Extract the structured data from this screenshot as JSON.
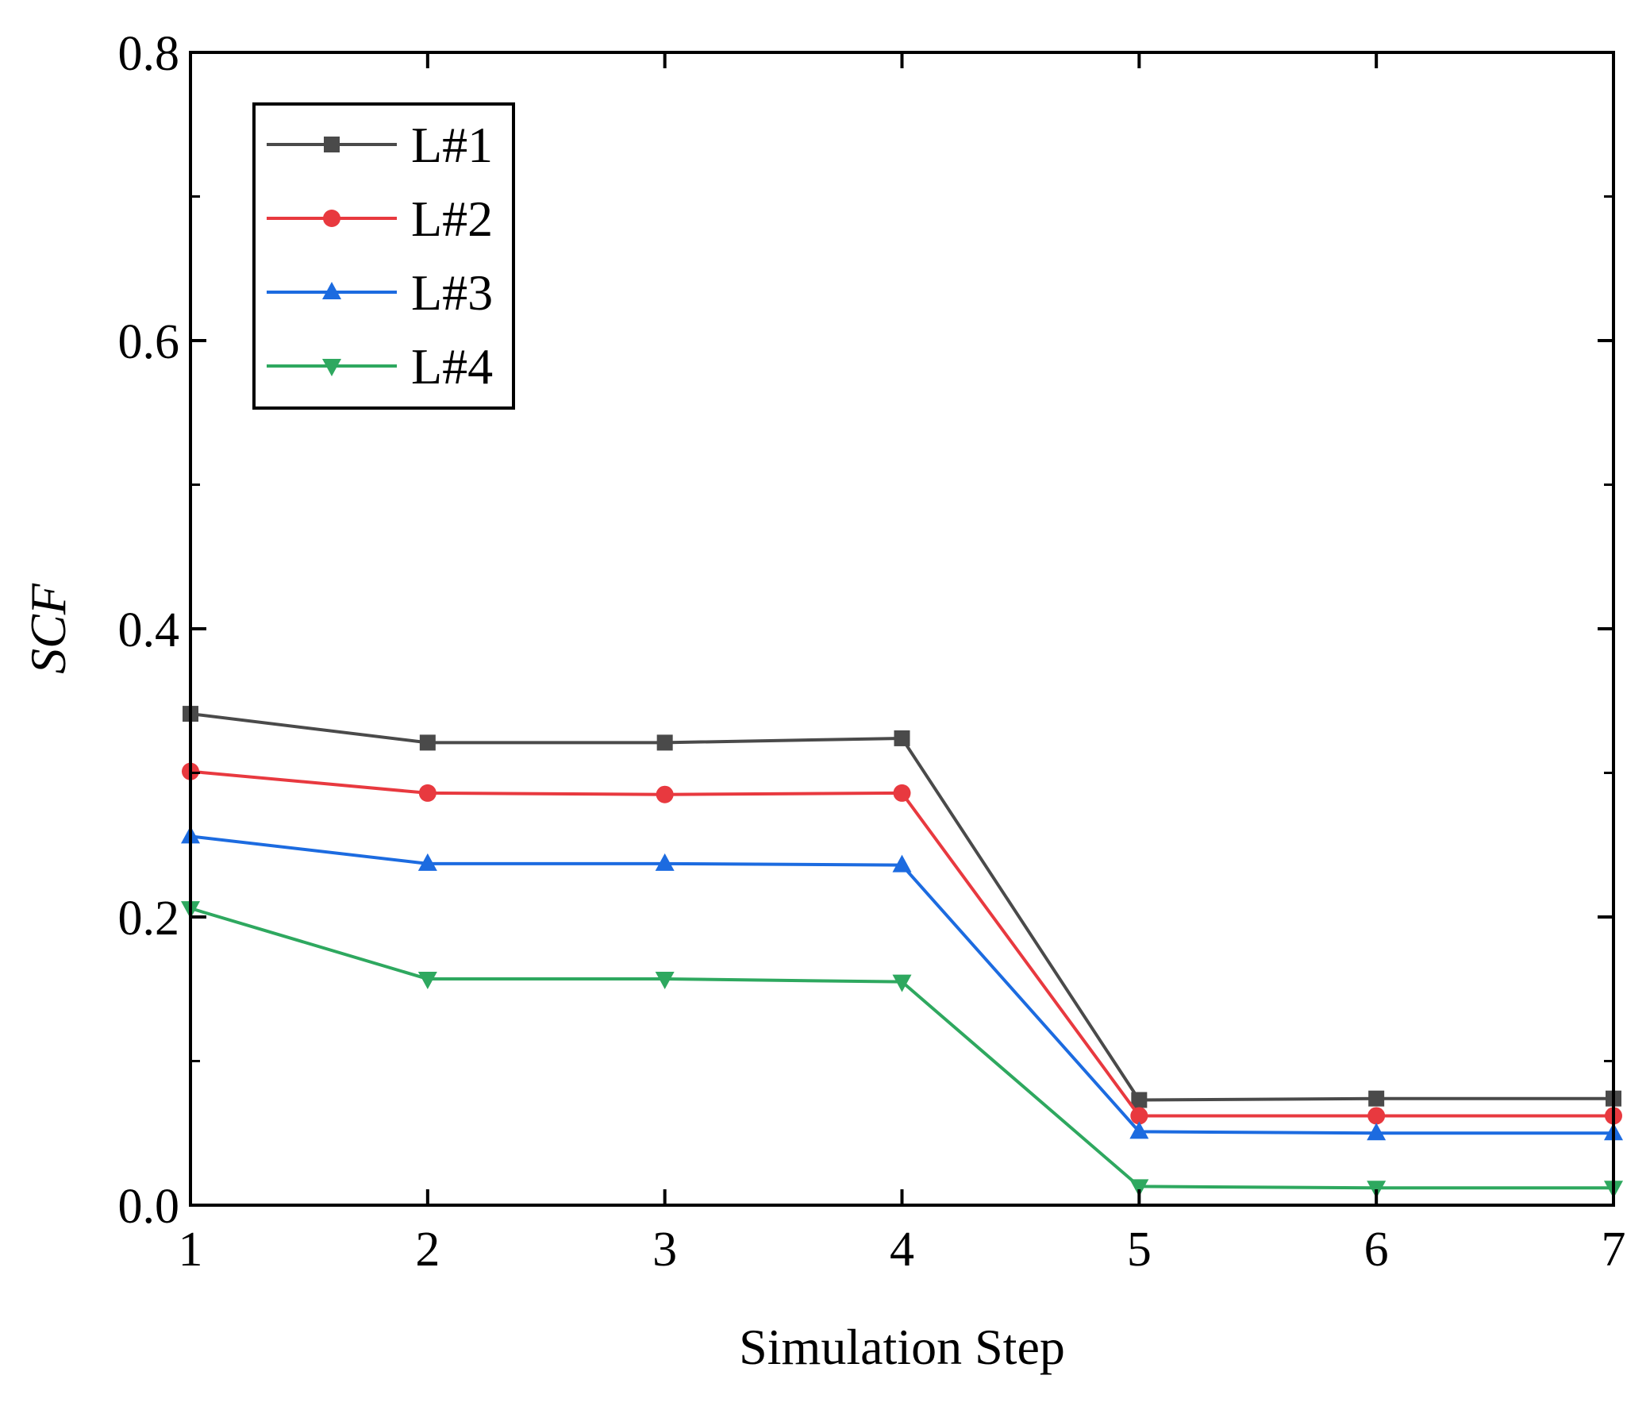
{
  "chart_data": {
    "type": "line",
    "title": "",
    "xlabel": "Simulation Step",
    "ylabel": "SCF",
    "x": [
      1,
      2,
      3,
      4,
      5,
      6,
      7
    ],
    "xlim": [
      1,
      7
    ],
    "ylim": [
      0,
      0.8
    ],
    "xticks": [
      "1",
      "2",
      "3",
      "4",
      "5",
      "6",
      "7"
    ],
    "yticks": [
      {
        "value": 0.0,
        "label": "0.0"
      },
      {
        "value": 0.2,
        "label": "0.2"
      },
      {
        "value": 0.4,
        "label": "0.4"
      },
      {
        "value": 0.6,
        "label": "0.6"
      },
      {
        "value": 0.8,
        "label": "0.8"
      }
    ],
    "legend_position": "top-left",
    "grid": false,
    "series": [
      {
        "name": "L#1",
        "color": "#4a4a4a",
        "marker": "square",
        "values": [
          0.341,
          0.321,
          0.321,
          0.324,
          0.073,
          0.074,
          0.074
        ]
      },
      {
        "name": "L#2",
        "color": "#e8393f",
        "marker": "circle",
        "values": [
          0.301,
          0.286,
          0.285,
          0.286,
          0.062,
          0.062,
          0.062
        ]
      },
      {
        "name": "L#3",
        "color": "#1c6be0",
        "marker": "triangle-up",
        "values": [
          0.256,
          0.237,
          0.237,
          0.236,
          0.051,
          0.05,
          0.05
        ]
      },
      {
        "name": "L#4",
        "color": "#2ea85f",
        "marker": "triangle-down",
        "values": [
          0.206,
          0.157,
          0.157,
          0.155,
          0.013,
          0.012,
          0.012
        ]
      }
    ]
  }
}
